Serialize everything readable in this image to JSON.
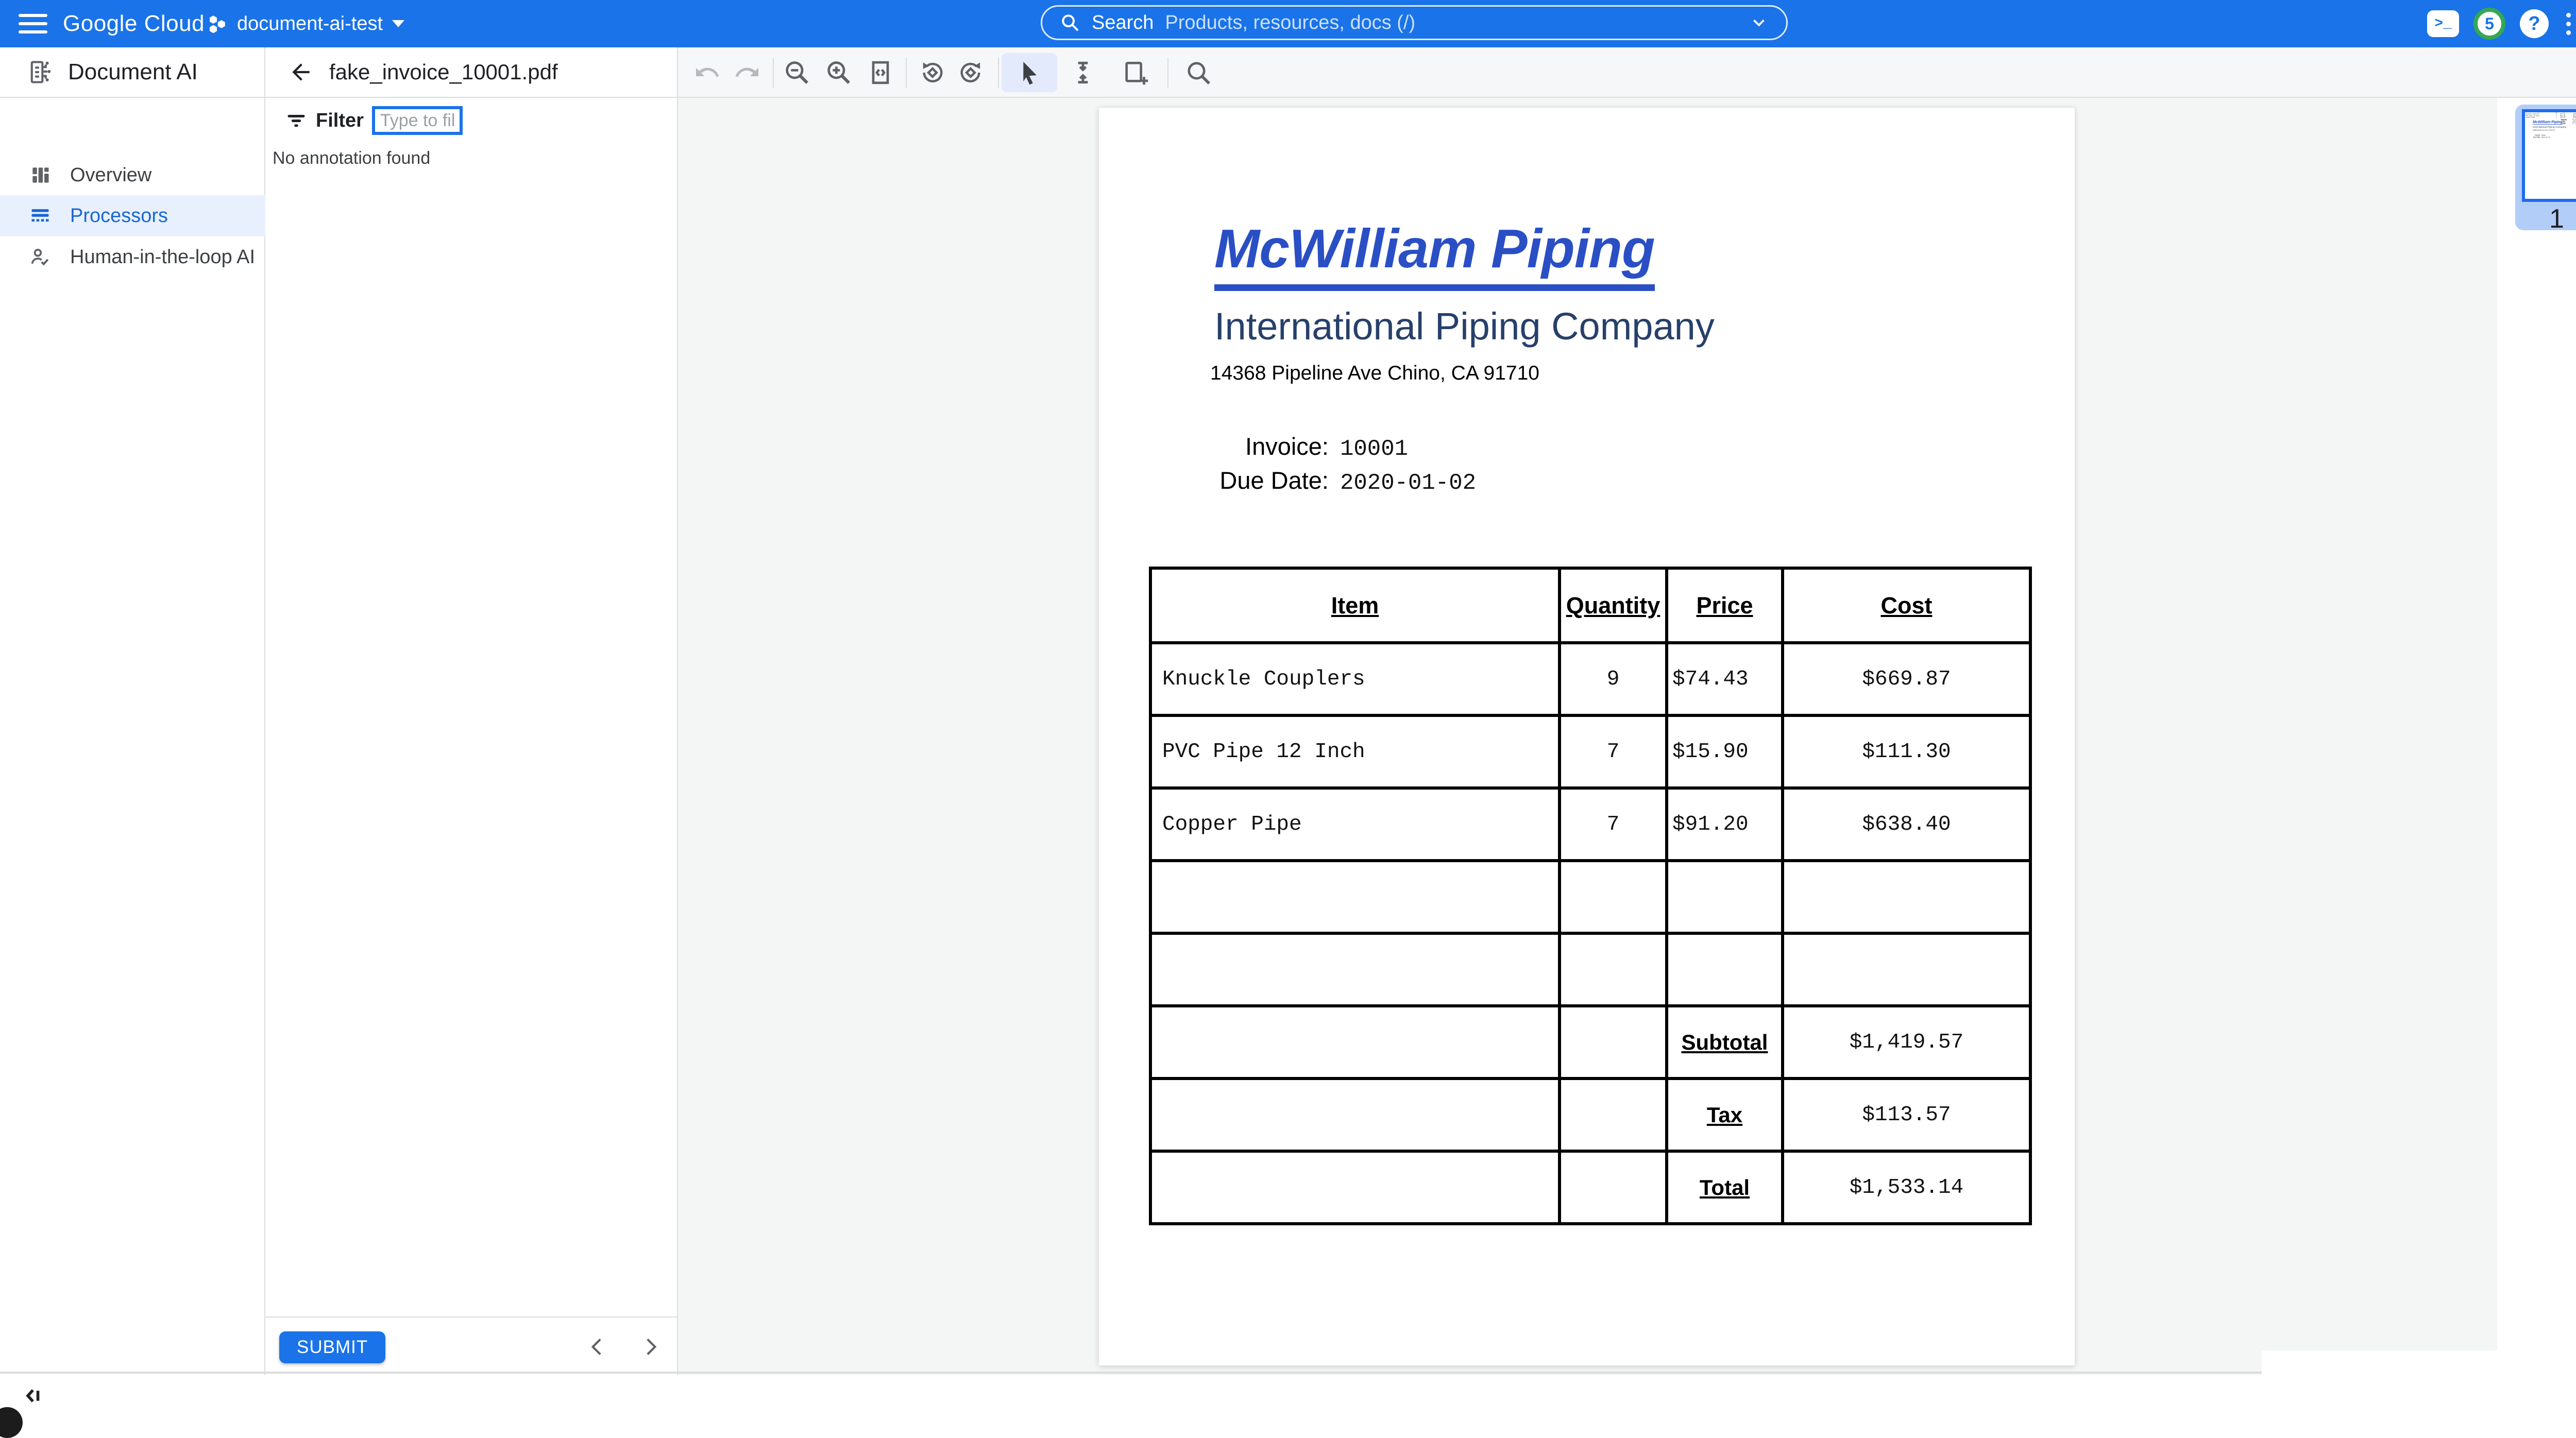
{
  "topbar": {
    "logo": "Google Cloud",
    "project": "document-ai-test",
    "search_label": "Search",
    "search_placeholder": "Products, resources, docs (/)",
    "notification_count": "5",
    "shell_glyph": ">_"
  },
  "sidebar": {
    "title": "Document AI",
    "items": [
      {
        "label": "Overview",
        "active": false
      },
      {
        "label": "Processors",
        "active": true
      },
      {
        "label": "Human-in-the-loop AI",
        "active": false
      }
    ]
  },
  "annotation_panel": {
    "filename": "fake_invoice_10001.pdf",
    "filter_label": "Filter",
    "filter_placeholder": "Type to filter",
    "empty_message": "No annotation found",
    "submit_label": "SUBMIT"
  },
  "viewer": {
    "page_number": "1",
    "toolbar_icons": [
      "undo",
      "redo",
      "zoom-out",
      "zoom-in",
      "fit-page",
      "rotate-counterclockwise",
      "rotate-clockwise",
      "select-cursor",
      "text-select",
      "add-region",
      "search-document",
      "more-options"
    ]
  },
  "invoice": {
    "company": "McWilliam Piping",
    "subtitle": "International Piping Company",
    "address": "14368 Pipeline Ave Chino, CA 91710",
    "invoice_label": "Invoice:",
    "invoice_number": "10001",
    "due_date_label": "Due Date:",
    "due_date": "2020-01-02",
    "table": {
      "headers": [
        "Item",
        "Quantity",
        "Price",
        "Cost"
      ],
      "items": [
        [
          "Knuckle Couplers",
          "9",
          "$74.43",
          "$669.87"
        ],
        [
          "PVC Pipe 12 Inch",
          "7",
          "$15.90",
          "$111.30"
        ],
        [
          "Copper Pipe",
          "7",
          "$91.20",
          "$638.40"
        ]
      ],
      "empty_rows": 2,
      "totals": [
        [
          "Subtotal",
          "$1,419.57"
        ],
        [
          "Tax",
          "$113.57"
        ],
        [
          "Total",
          "$1,533.14"
        ]
      ]
    }
  },
  "colors": {
    "topbar_blue": "#1a73e8",
    "nav_active_text": "#1967d2",
    "nav_active_bg": "#e8f0fe",
    "notification_ring_green": "#34a853",
    "invoice_title_blue": "#2a4fc5",
    "invoice_subtitle_navy": "#27406b",
    "thumb_selected_bg": "#b3cdf9",
    "thumb_border_blue": "#1c6ced"
  }
}
